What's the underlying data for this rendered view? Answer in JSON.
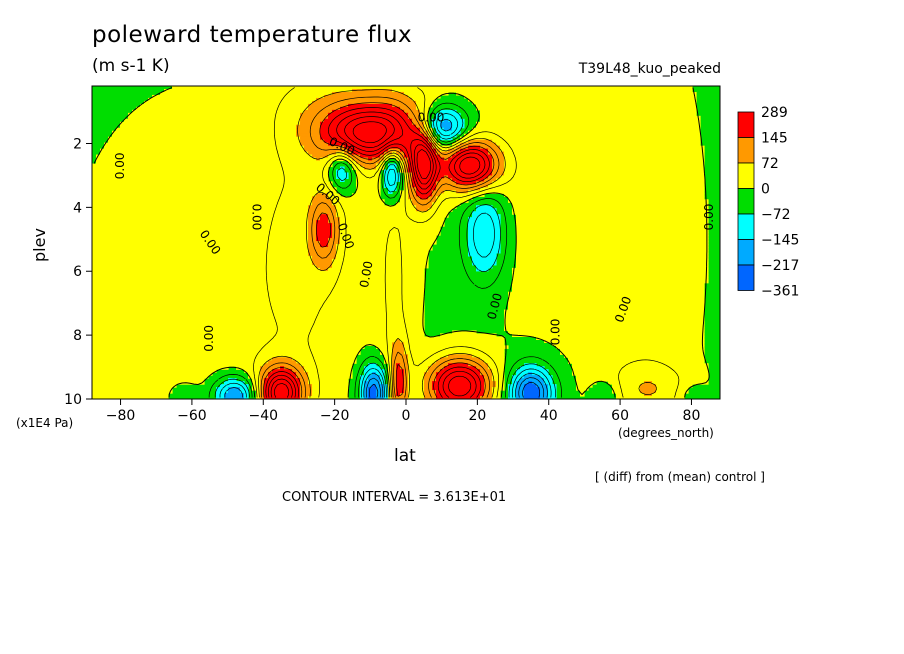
{
  "chart_data": {
    "type": "heatmap",
    "title": "poleward temperature flux",
    "units": "(m s-1 K)",
    "run_label": "T39L48_kuo_peaked",
    "xlabel": "lat",
    "ylabel": "plev",
    "x_unit_label": "(degrees_north)",
    "y_unit_label": "(x1E4 Pa)",
    "note": "[ (diff) from (mean) control ]",
    "contour_interval_text": "CONTOUR INTERVAL = 3.613E+01",
    "xlim": [
      -88,
      88
    ],
    "ylim": [
      10,
      0.2
    ],
    "x_ticks": [
      -80,
      -60,
      -40,
      -20,
      0,
      20,
      40,
      60,
      80
    ],
    "y_ticks": [
      2,
      4,
      6,
      8,
      10
    ],
    "contour_label": "0.00",
    "legend": {
      "labels": [
        "289",
        "145",
        "72",
        "0",
        "-72",
        "-145",
        "-217",
        "-361"
      ],
      "colors": [
        "#ff0000",
        "#ff9900",
        "#ffff00",
        "#00dd00",
        "#00ffff",
        "#00aaff",
        "#0066ff"
      ]
    },
    "background_color": "#00dd00",
    "features": [
      {
        "sign": "positive",
        "lat": -60,
        "plev": 6.5,
        "w": 42,
        "h": 7.5,
        "peak": 40
      },
      {
        "sign": "positive",
        "lat": 68,
        "plev": 5.5,
        "w": 18,
        "h": 9,
        "peak": 40
      },
      {
        "sign": "positive",
        "lat": -27,
        "plev": 5,
        "w": 18,
        "h": 8,
        "peak": 40
      },
      {
        "sign": "positive",
        "lat": 38,
        "plev": 4,
        "w": 28,
        "h": 5,
        "peak": 40
      },
      {
        "sign": "positive",
        "lat": -3,
        "plev": 6.5,
        "w": 6,
        "h": 5.5,
        "peak": 45
      },
      {
        "sign": "positive",
        "lat": -7,
        "plev": 0.7,
        "w": 24,
        "h": 1,
        "peak": 50
      },
      {
        "sign": "positive",
        "lat": -10,
        "plev": 1.7,
        "w": 14,
        "h": 0.9,
        "peak": 300
      },
      {
        "sign": "positive",
        "lat": 5,
        "plev": 2.7,
        "w": 4,
        "h": 1.2,
        "peak": 300
      },
      {
        "sign": "positive",
        "lat": 18,
        "plev": 2.7,
        "w": 8,
        "h": 0.8,
        "peak": 300
      },
      {
        "sign": "positive",
        "lat": -23,
        "plev": 4.7,
        "w": 4,
        "h": 1.1,
        "peak": 140
      },
      {
        "sign": "positive",
        "lat": -35,
        "plev": 9.8,
        "w": 6,
        "h": 0.8,
        "peak": 300
      },
      {
        "sign": "positive",
        "lat": 15,
        "plev": 9.6,
        "w": 9,
        "h": 0.9,
        "peak": 300
      },
      {
        "sign": "positive",
        "lat": -2,
        "plev": 9.5,
        "w": 2.5,
        "h": 1.2,
        "peak": 150
      },
      {
        "sign": "positive",
        "lat": 68,
        "plev": 9.7,
        "w": 12,
        "h": 0.8,
        "peak": 60
      },
      {
        "sign": "negative",
        "lat": 10,
        "plev": 1.5,
        "w": 7,
        "h": 0.7,
        "peak": 230
      },
      {
        "sign": "negative",
        "lat": -18,
        "plev": 2.8,
        "w": 4,
        "h": 0.7,
        "peak": 150
      },
      {
        "sign": "negative",
        "lat": -4,
        "plev": 2.9,
        "w": 3,
        "h": 0.8,
        "peak": 200
      },
      {
        "sign": "negative",
        "lat": 22,
        "plev": 4.8,
        "w": 6,
        "h": 1.5,
        "peak": 150
      },
      {
        "sign": "negative",
        "lat": -48,
        "plev": 9.9,
        "w": 6,
        "h": 0.6,
        "peak": 200
      },
      {
        "sign": "negative",
        "lat": -9,
        "plev": 9.8,
        "w": 4,
        "h": 0.9,
        "peak": 250
      },
      {
        "sign": "negative",
        "lat": 35,
        "plev": 9.8,
        "w": 6,
        "h": 0.8,
        "peak": 250
      },
      {
        "sign": "negative",
        "lat": 56,
        "plev": 9.9,
        "w": 4,
        "h": 0.5,
        "peak": 60
      },
      {
        "sign": "negative",
        "lat": -62,
        "plev": 9.9,
        "w": 4,
        "h": 0.4,
        "peak": 40
      },
      {
        "sign": "negative",
        "lat": 80,
        "plev": 9.9,
        "w": 4,
        "h": 0.4,
        "peak": 40
      }
    ],
    "label_positions": [
      {
        "lat": -80,
        "plev": 2.7,
        "angle": -90
      },
      {
        "lat": -55,
        "plev": 5.1,
        "angle": 55
      },
      {
        "lat": -42,
        "plev": 4.3,
        "angle": 90
      },
      {
        "lat": -55,
        "plev": 8.1,
        "angle": -90
      },
      {
        "lat": -22,
        "plev": 3.6,
        "angle": 40
      },
      {
        "lat": -17,
        "plev": 4.9,
        "angle": 70
      },
      {
        "lat": -11,
        "plev": 6.1,
        "angle": -80
      },
      {
        "lat": 25,
        "plev": 7.1,
        "angle": -75
      },
      {
        "lat": 42,
        "plev": 7.9,
        "angle": -90
      },
      {
        "lat": 61,
        "plev": 7.2,
        "angle": -70
      },
      {
        "lat": 85,
        "plev": 4.3,
        "angle": -90
      },
      {
        "lat": 7,
        "plev": 1.2,
        "angle": 0
      },
      {
        "lat": -18,
        "plev": 2.1,
        "angle": 25
      }
    ]
  }
}
